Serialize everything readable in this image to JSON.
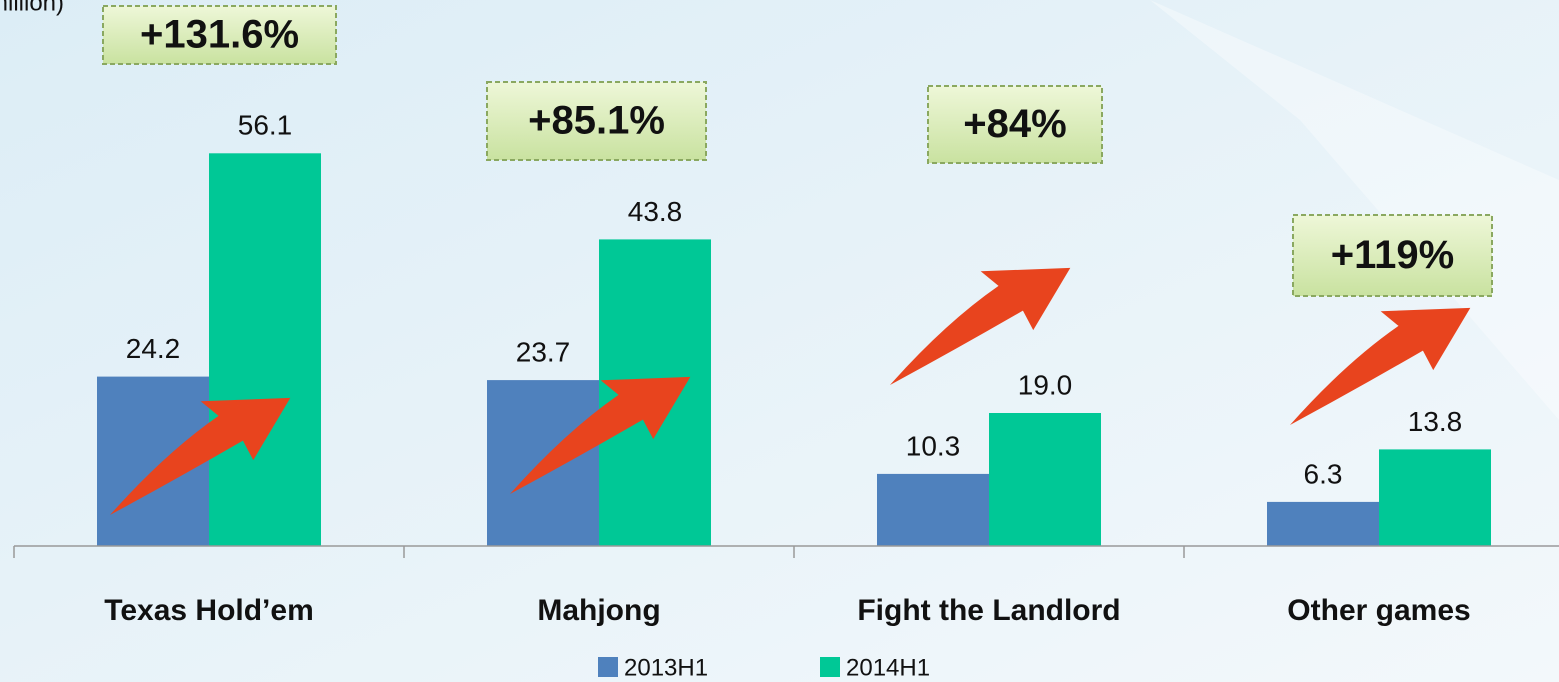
{
  "chart_data": {
    "type": "bar",
    "subtitle": "million)",
    "categories": [
      "Texas Hold’em",
      "Mahjong",
      "Fight the Landlord",
      "Other games"
    ],
    "series": [
      {
        "name": "2013H1",
        "color": "#4f81bd",
        "values": [
          24.2,
          23.7,
          10.3,
          6.3
        ]
      },
      {
        "name": "2014H1",
        "color": "#00c896",
        "values": [
          56.1,
          43.8,
          19.0,
          13.8
        ]
      }
    ],
    "value_labels": [
      [
        "24.2",
        "23.7",
        "10.3",
        "6.3"
      ],
      [
        "56.1",
        "43.8",
        "19.0",
        "13.8"
      ]
    ],
    "annotations": [
      "+131.6%",
      "+85.1%",
      "+84%",
      "+119%"
    ],
    "ylim": [
      0,
      78
    ]
  }
}
